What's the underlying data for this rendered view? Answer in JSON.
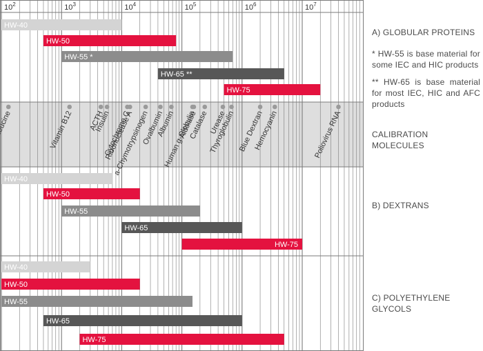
{
  "chart_data": {
    "type": "range-bar",
    "x_scale": "log10",
    "x_range": [
      100,
      50000000
    ],
    "x_tick_labels": [
      {
        "value": 100,
        "base": "10",
        "exp": "2"
      },
      {
        "value": 1000,
        "base": "10",
        "exp": "3"
      },
      {
        "value": 10000,
        "base": "10",
        "exp": "4"
      },
      {
        "value": 100000,
        "base": "10",
        "exp": "5"
      },
      {
        "value": 1000000,
        "base": "10",
        "exp": "6"
      },
      {
        "value": 10000000,
        "base": "10",
        "exp": "7"
      }
    ],
    "panels": [
      {
        "id": "globular-proteins",
        "label": "A) GLOBULAR PROTEINS",
        "bars": [
          {
            "name": "HW-40",
            "from": 100,
            "to": 10000,
            "color": "#d4d4d4",
            "text_color": "#ffffff"
          },
          {
            "name": "HW-50",
            "from": 500,
            "to": 80000,
            "color": "#e4123f",
            "text_color": "#ffffff"
          },
          {
            "name": "HW-55 *",
            "from": 1000,
            "to": 700000,
            "color": "#8c8c8c",
            "text_color": "#ffffff"
          },
          {
            "name": "HW-65 **",
            "from": 40000,
            "to": 5000000,
            "color": "#575757",
            "text_color": "#ffffff"
          },
          {
            "name": "HW-75",
            "from": 500000,
            "to": 20000000,
            "color": "#e4123f",
            "text_color": "#ffffff"
          }
        ]
      },
      {
        "id": "dextrans",
        "label": "B) DEXTRANS",
        "bars": [
          {
            "name": "HW-40",
            "from": 100,
            "to": 7000,
            "color": "#d4d4d4",
            "text_color": "#ffffff"
          },
          {
            "name": "HW-50",
            "from": 500,
            "to": 20000,
            "color": "#e4123f",
            "text_color": "#ffffff"
          },
          {
            "name": "HW-55",
            "from": 1000,
            "to": 200000,
            "color": "#8c8c8c",
            "text_color": "#ffffff"
          },
          {
            "name": "HW-65",
            "from": 10000,
            "to": 1000000,
            "color": "#575757",
            "text_color": "#ffffff"
          },
          {
            "name": "HW-75",
            "from": 100000,
            "to": 10000000,
            "color": "#e4123f",
            "text_color": "#ffffff",
            "label_align": "right"
          }
        ]
      },
      {
        "id": "polyethylene-glycols",
        "label": "C) POLYETHYLENE GLYCOLS",
        "bars": [
          {
            "name": "HW-40",
            "from": 100,
            "to": 3000,
            "color": "#d4d4d4",
            "text_color": "#ffffff"
          },
          {
            "name": "HW-50",
            "from": 100,
            "to": 20000,
            "color": "#e4123f",
            "text_color": "#ffffff"
          },
          {
            "name": "HW-55",
            "from": 100,
            "to": 150000,
            "color": "#8c8c8c",
            "text_color": "#ffffff"
          },
          {
            "name": "HW-65",
            "from": 500,
            "to": 1000000,
            "color": "#575757",
            "text_color": "#ffffff"
          },
          {
            "name": "HW-75",
            "from": 2000,
            "to": 5000000,
            "color": "#e4123f",
            "text_color": "#ffffff"
          }
        ]
      }
    ],
    "calibration": {
      "label": "CALIBRATION MOLECULES",
      "molecules": [
        {
          "name": "Leucine",
          "mw": 131
        },
        {
          "name": "Vitamin B12",
          "mw": 1355
        },
        {
          "name": "ACTH",
          "mw": 4500
        },
        {
          "name": "Insulin",
          "mw": 5700
        },
        {
          "name": "Cytochrome C",
          "mw": 12400
        },
        {
          "name": "Ribonuclease A",
          "mw": 13700
        },
        {
          "name": "a-Chymotrypsinogen",
          "mw": 25000
        },
        {
          "name": "Ovalbumin",
          "mw": 44000
        },
        {
          "name": "Albumin",
          "mw": 67000
        },
        {
          "name": "Human g-Globulin",
          "mw": 150000
        },
        {
          "name": "Aldolase",
          "mw": 158000
        },
        {
          "name": "Catalase",
          "mw": 240000
        },
        {
          "name": "Urease",
          "mw": 480000
        },
        {
          "name": "Thyroglobulin",
          "mw": 669000
        },
        {
          "name": "Blue Dextran",
          "mw": 2000000
        },
        {
          "name": "Hemocyanin",
          "mw": 3500000
        },
        {
          "name": "Poliovirus RNA",
          "mw": 40000000
        }
      ]
    },
    "notes": [
      "* HW-55 is base material for some IEC and HIC products",
      "** HW-65 is base material for most IEC, HIC and AFC products"
    ],
    "colors": {
      "grid": "#7a7a7a",
      "calibration_band": "#dedede",
      "dot": "#9a9a9a",
      "text": "#4a4a4a"
    }
  }
}
